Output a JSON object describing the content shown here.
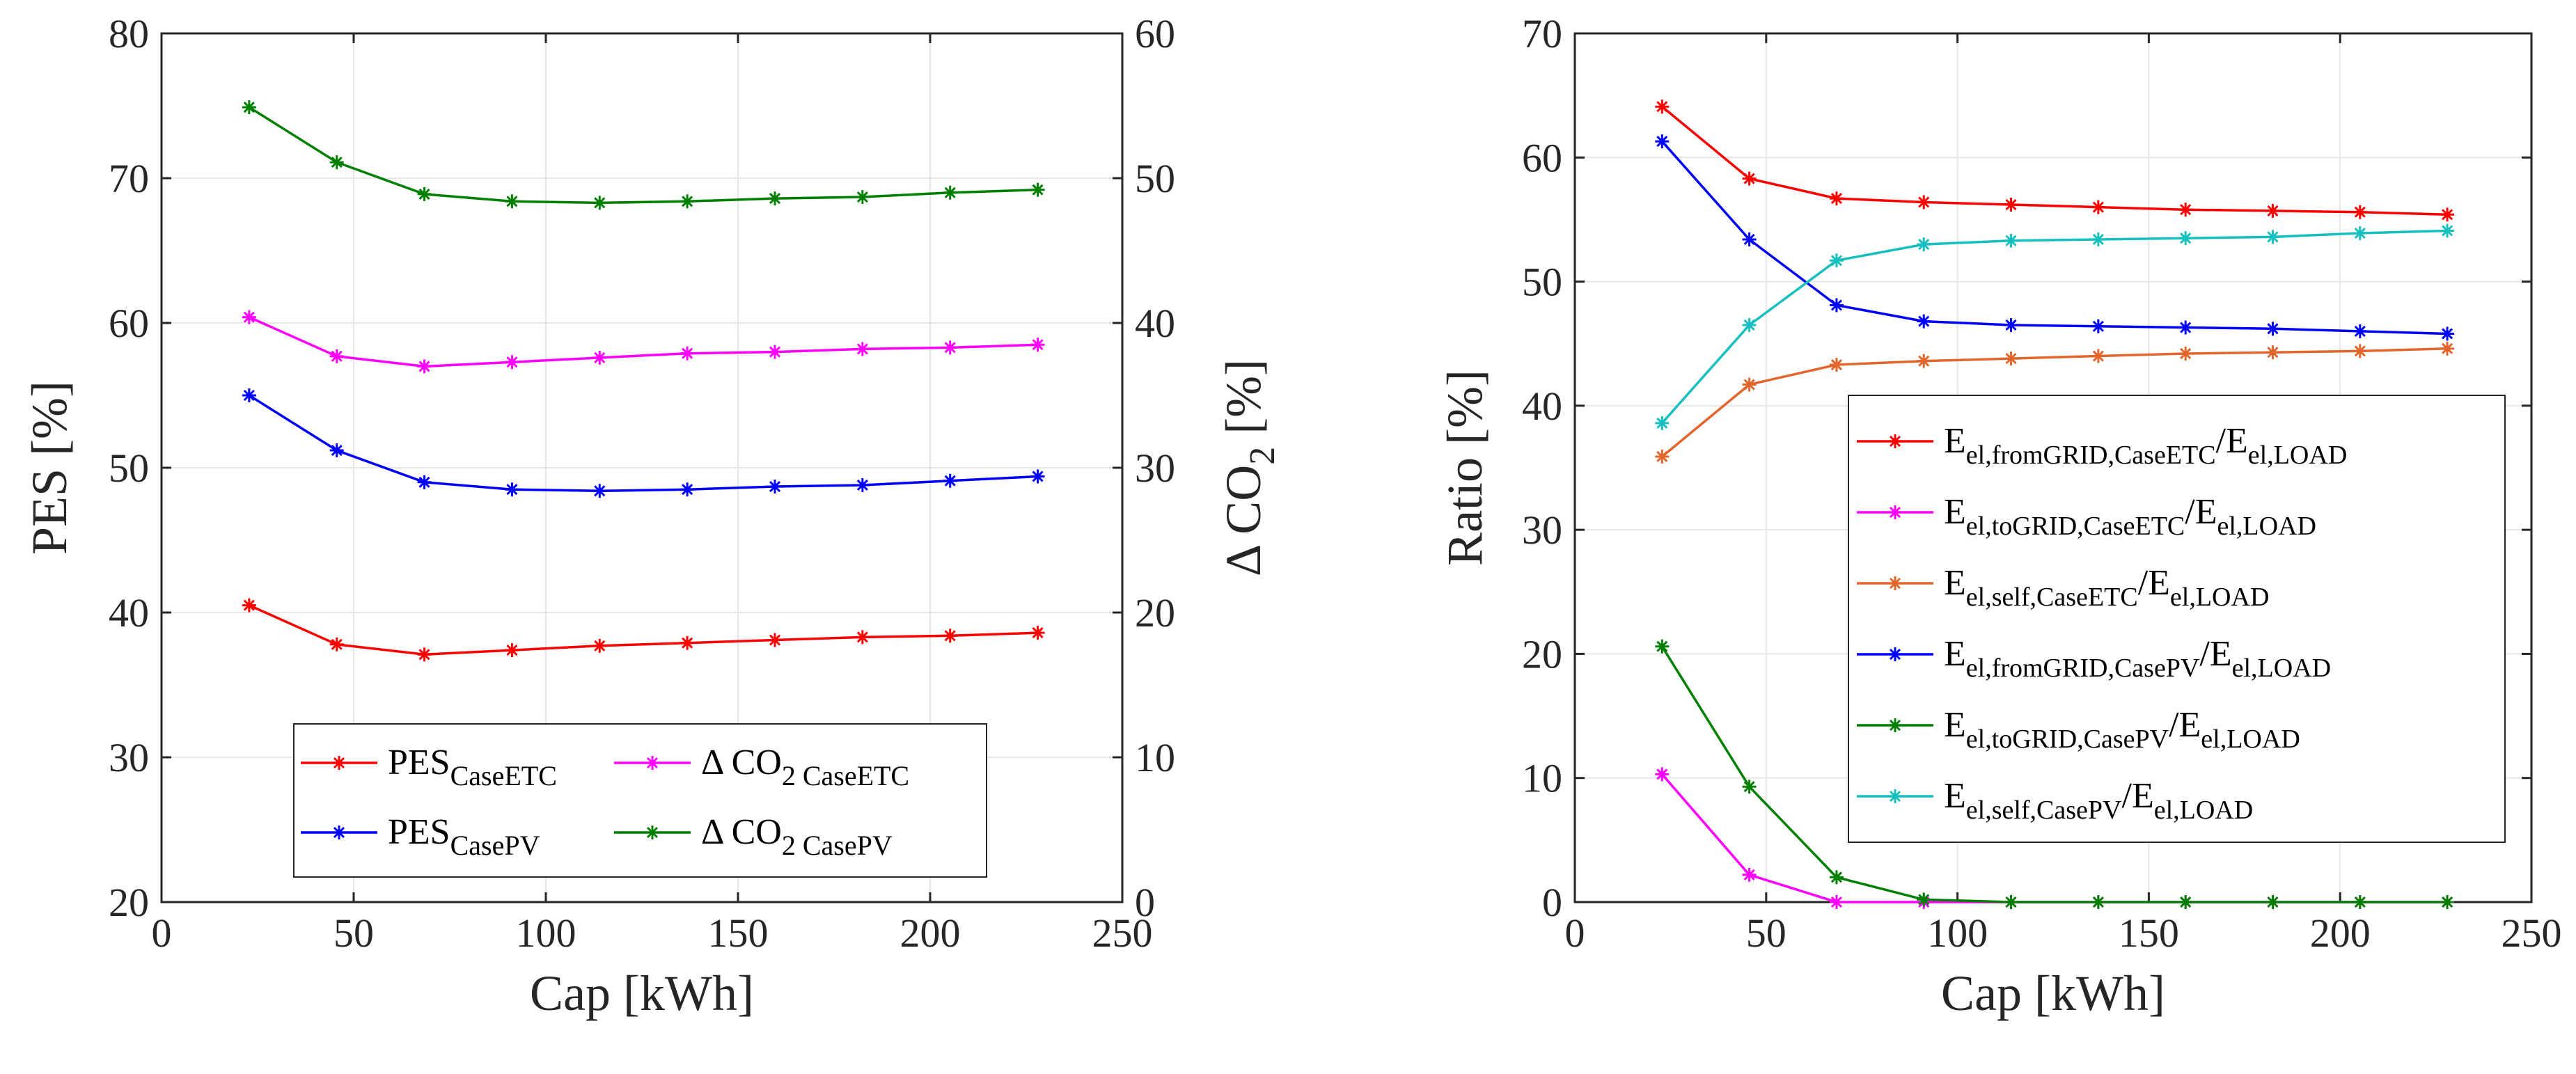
{
  "chart_data": [
    {
      "type": "line",
      "xlabel": "Cap [kWh]",
      "ylabel": "PES [%]",
      "ylabel_right": "Δ CO",
      "ylabel_right_sub": "2",
      "ylabel_right_suffix": " [%]",
      "xlim": [
        0,
        250
      ],
      "ylim": [
        20,
        80
      ],
      "ylim_right": [
        0,
        60
      ],
      "xticks": [
        "0",
        "50",
        "100",
        "150",
        "200",
        "250"
      ],
      "yticks": [
        "20",
        "30",
        "40",
        "50",
        "60",
        "70",
        "80"
      ],
      "yticks_right": [
        "0",
        "10",
        "20",
        "30",
        "40",
        "50",
        "60"
      ],
      "grid": true,
      "legend_position": "bottom-center",
      "x": [
        22.8,
        45.6,
        68.4,
        91.2,
        114,
        136.8,
        159.6,
        182.4,
        205.2,
        228
      ],
      "series": [
        {
          "axis": "left",
          "color": "#ff0000",
          "legend_main": "PES",
          "legend_sub": "CaseETC",
          "values": [
            40.5,
            37.8,
            37.1,
            37.4,
            37.7,
            37.9,
            38.1,
            38.3,
            38.4,
            38.6
          ]
        },
        {
          "axis": "left",
          "color": "#0000ff",
          "legend_main": "PES",
          "legend_sub": "CasePV",
          "values": [
            55.0,
            51.2,
            49.0,
            48.5,
            48.4,
            48.5,
            48.7,
            48.8,
            49.1,
            49.4
          ]
        },
        {
          "axis": "right",
          "color": "#ff00ff",
          "legend_main": "Δ CO",
          "legend_sub": "2 CaseETC",
          "values": [
            40.4,
            37.7,
            37.0,
            37.3,
            37.6,
            37.9,
            38.0,
            38.2,
            38.3,
            38.5
          ]
        },
        {
          "axis": "right",
          "color": "#008000",
          "legend_main": "Δ CO",
          "legend_sub": "2 CasePV",
          "values": [
            54.9,
            51.1,
            48.9,
            48.4,
            48.3,
            48.4,
            48.6,
            48.7,
            49.0,
            49.2
          ]
        }
      ]
    },
    {
      "type": "line",
      "xlabel": "Cap [kWh]",
      "ylabel": "Ratio [%]",
      "xlim": [
        0,
        250
      ],
      "ylim": [
        0,
        70
      ],
      "xticks": [
        "0",
        "50",
        "100",
        "150",
        "200",
        "250"
      ],
      "yticks": [
        "0",
        "10",
        "20",
        "30",
        "40",
        "50",
        "60",
        "70"
      ],
      "grid": true,
      "legend_position": "right",
      "x": [
        22.8,
        45.6,
        68.4,
        91.2,
        114,
        136.8,
        159.6,
        182.4,
        205.2,
        228
      ],
      "series": [
        {
          "color": "#ff0000",
          "legend_main": "E",
          "legend_sub": "el,fromGRID,CaseETC",
          "legend_div": "/E",
          "legend_sub2": "el,LOAD",
          "values": [
            64.1,
            58.3,
            56.7,
            56.4,
            56.2,
            56.0,
            55.8,
            55.7,
            55.6,
            55.4
          ]
        },
        {
          "color": "#ff00ff",
          "legend_main": "E",
          "legend_sub": "el,toGRID,CaseETC",
          "legend_div": "/E",
          "legend_sub2": "el,LOAD",
          "values": [
            10.3,
            2.2,
            0.0,
            0.0,
            0.0,
            0.0,
            0.0,
            0.0,
            0.0,
            0.0
          ]
        },
        {
          "color": "#e2662b",
          "legend_main": "E",
          "legend_sub": "el,self,CaseETC",
          "legend_div": "/E",
          "legend_sub2": "el,LOAD",
          "values": [
            35.9,
            41.7,
            43.3,
            43.6,
            43.8,
            44.0,
            44.2,
            44.3,
            44.4,
            44.6
          ]
        },
        {
          "color": "#0000ff",
          "legend_main": "E",
          "legend_sub": "el,fromGRID,CasePV",
          "legend_div": "/E",
          "legend_sub2": "el,LOAD",
          "values": [
            61.3,
            53.4,
            48.1,
            46.8,
            46.5,
            46.4,
            46.3,
            46.2,
            46.0,
            45.8
          ]
        },
        {
          "color": "#008000",
          "legend_main": "E",
          "legend_sub": "el,toGRID,CasePV",
          "legend_div": "/E",
          "legend_sub2": "el,LOAD",
          "values": [
            20.6,
            9.3,
            2.0,
            0.2,
            0.0,
            0.0,
            0.0,
            0.0,
            0.0,
            0.0
          ]
        },
        {
          "color": "#17bfbf",
          "legend_main": "E",
          "legend_sub": "el,self,CasePV",
          "legend_div": "/E",
          "legend_sub2": "el,LOAD",
          "values": [
            38.6,
            46.5,
            51.7,
            53.0,
            53.3,
            53.4,
            53.5,
            53.6,
            53.9,
            54.1
          ]
        }
      ]
    }
  ]
}
